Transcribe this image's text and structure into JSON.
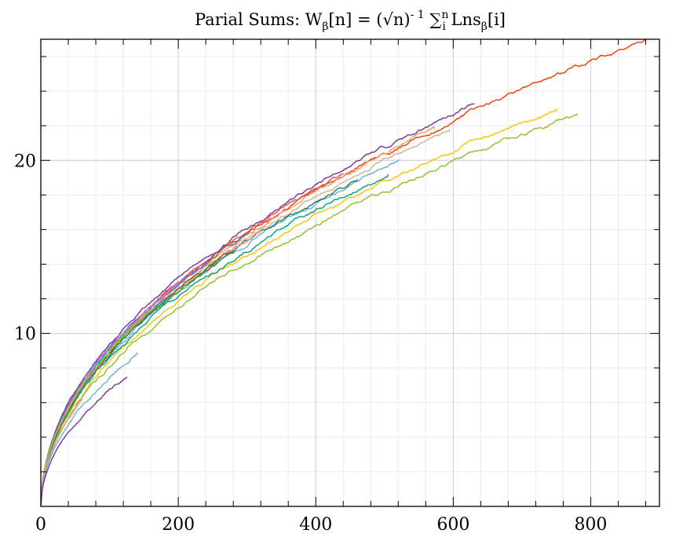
{
  "chart_data": {
    "type": "line",
    "title": "Parial Sums: Wβ[n] = (√n)⁻¹ ∑ᵢⁿ Lnsβ[i]",
    "title_parts": {
      "prefix": "Parial Sums: W",
      "sub_beta": "β",
      "mid": "[n] = (√n)",
      "sup_minus_one": "- 1",
      "sum_sign": "∑",
      "sum_sub": "i",
      "sum_sup": "n",
      "lns": " Lns",
      "sub_beta2": "β",
      "end": "[i]"
    },
    "xlabel": "",
    "ylabel": "",
    "xlim": [
      0,
      900
    ],
    "ylim": [
      0,
      27
    ],
    "x_ticks": [
      0,
      200,
      400,
      600,
      800
    ],
    "y_ticks": [
      10,
      20
    ],
    "x_tick_labels": [
      "0",
      "200",
      "400",
      "600",
      "800"
    ],
    "y_tick_labels": [
      "10",
      "20"
    ],
    "grid": true,
    "legend": "none",
    "curve_model": "y ≈ a·√x",
    "series": [
      {
        "color": "#7b3294",
        "x_end": 630,
        "y_end": 23.3
      },
      {
        "color": "#f03c00",
        "x_end": 880,
        "y_end": 27.0
      },
      {
        "color": "#ffc000",
        "x_end": 750,
        "y_end": 23.0
      },
      {
        "color": "#8cbf26",
        "x_end": 780,
        "y_end": 22.7
      },
      {
        "color": "#e6a070",
        "x_end": 572,
        "y_end": 21.8
      },
      {
        "color": "#d4b090",
        "x_end": 595,
        "y_end": 21.8
      },
      {
        "color": "#6baed6",
        "x_end": 522,
        "y_end": 20.0
      },
      {
        "color": "#00a087",
        "x_end": 505,
        "y_end": 19.2
      },
      {
        "color": "#1b7f5f",
        "x_end": 460,
        "y_end": 18.9
      },
      {
        "color": "#e05050",
        "x_end": 440,
        "y_end": 19.2
      },
      {
        "color": "#4472c4",
        "x_end": 300,
        "y_end": 15.8
      },
      {
        "color": "#ff8c69",
        "x_end": 320,
        "y_end": 15.9
      },
      {
        "color": "#a0522d",
        "x_end": 280,
        "y_end": 14.8
      },
      {
        "color": "#2ca02c",
        "x_end": 260,
        "y_end": 14.3
      },
      {
        "color": "#9467bd",
        "x_end": 240,
        "y_end": 14.0
      },
      {
        "color": "#e377c2",
        "x_end": 200,
        "y_end": 12.9
      },
      {
        "color": "#17becf",
        "x_end": 180,
        "y_end": 12.0
      },
      {
        "color": "#bcbd22",
        "x_end": 160,
        "y_end": 11.3
      },
      {
        "color": "#ff9896",
        "x_end": 60,
        "y_end": 6.2
      },
      {
        "color": "#6baed6",
        "x_end": 140,
        "y_end": 8.9
      },
      {
        "color": "#7b3294",
        "x_end": 125,
        "y_end": 7.5
      }
    ]
  }
}
